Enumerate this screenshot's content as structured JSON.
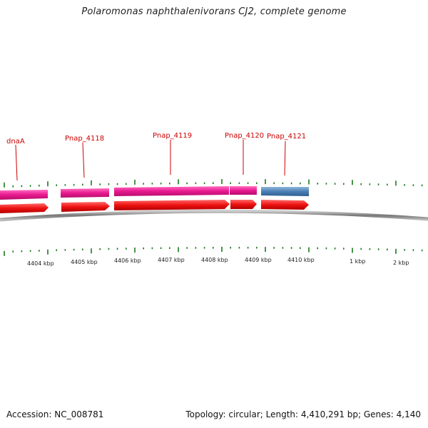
{
  "header": {
    "title": "Polaromonas naphthalenivorans CJ2, complete genome"
  },
  "footer": {
    "accession": "Accession: NC_008781",
    "summary": "Topology: circular; Length: 4,410,291 bp; Genes: 4,140"
  },
  "map": {
    "genes": [
      {
        "label": "dnaA"
      },
      {
        "label": "Pnap_4118"
      },
      {
        "label": "Pnap_4119"
      },
      {
        "label": "Pnap_4120"
      },
      {
        "label": "Pnap_4121"
      }
    ],
    "scale_labels": [
      "4404 kbp",
      "4405 kbp",
      "4406 kbp",
      "4407 kbp",
      "4408 kbp",
      "4409 kbp",
      "4410 kbp",
      "1 kbp",
      "2 kbp"
    ],
    "colors": {
      "gene_label": "#cc0000",
      "leader_line": "#cc0000",
      "tick": "#1a7a1a",
      "cds_pink": "#e8198f",
      "cds_blue": "#4a7fb5",
      "gene_red": "#ee1111",
      "backbone": "#888888"
    }
  }
}
